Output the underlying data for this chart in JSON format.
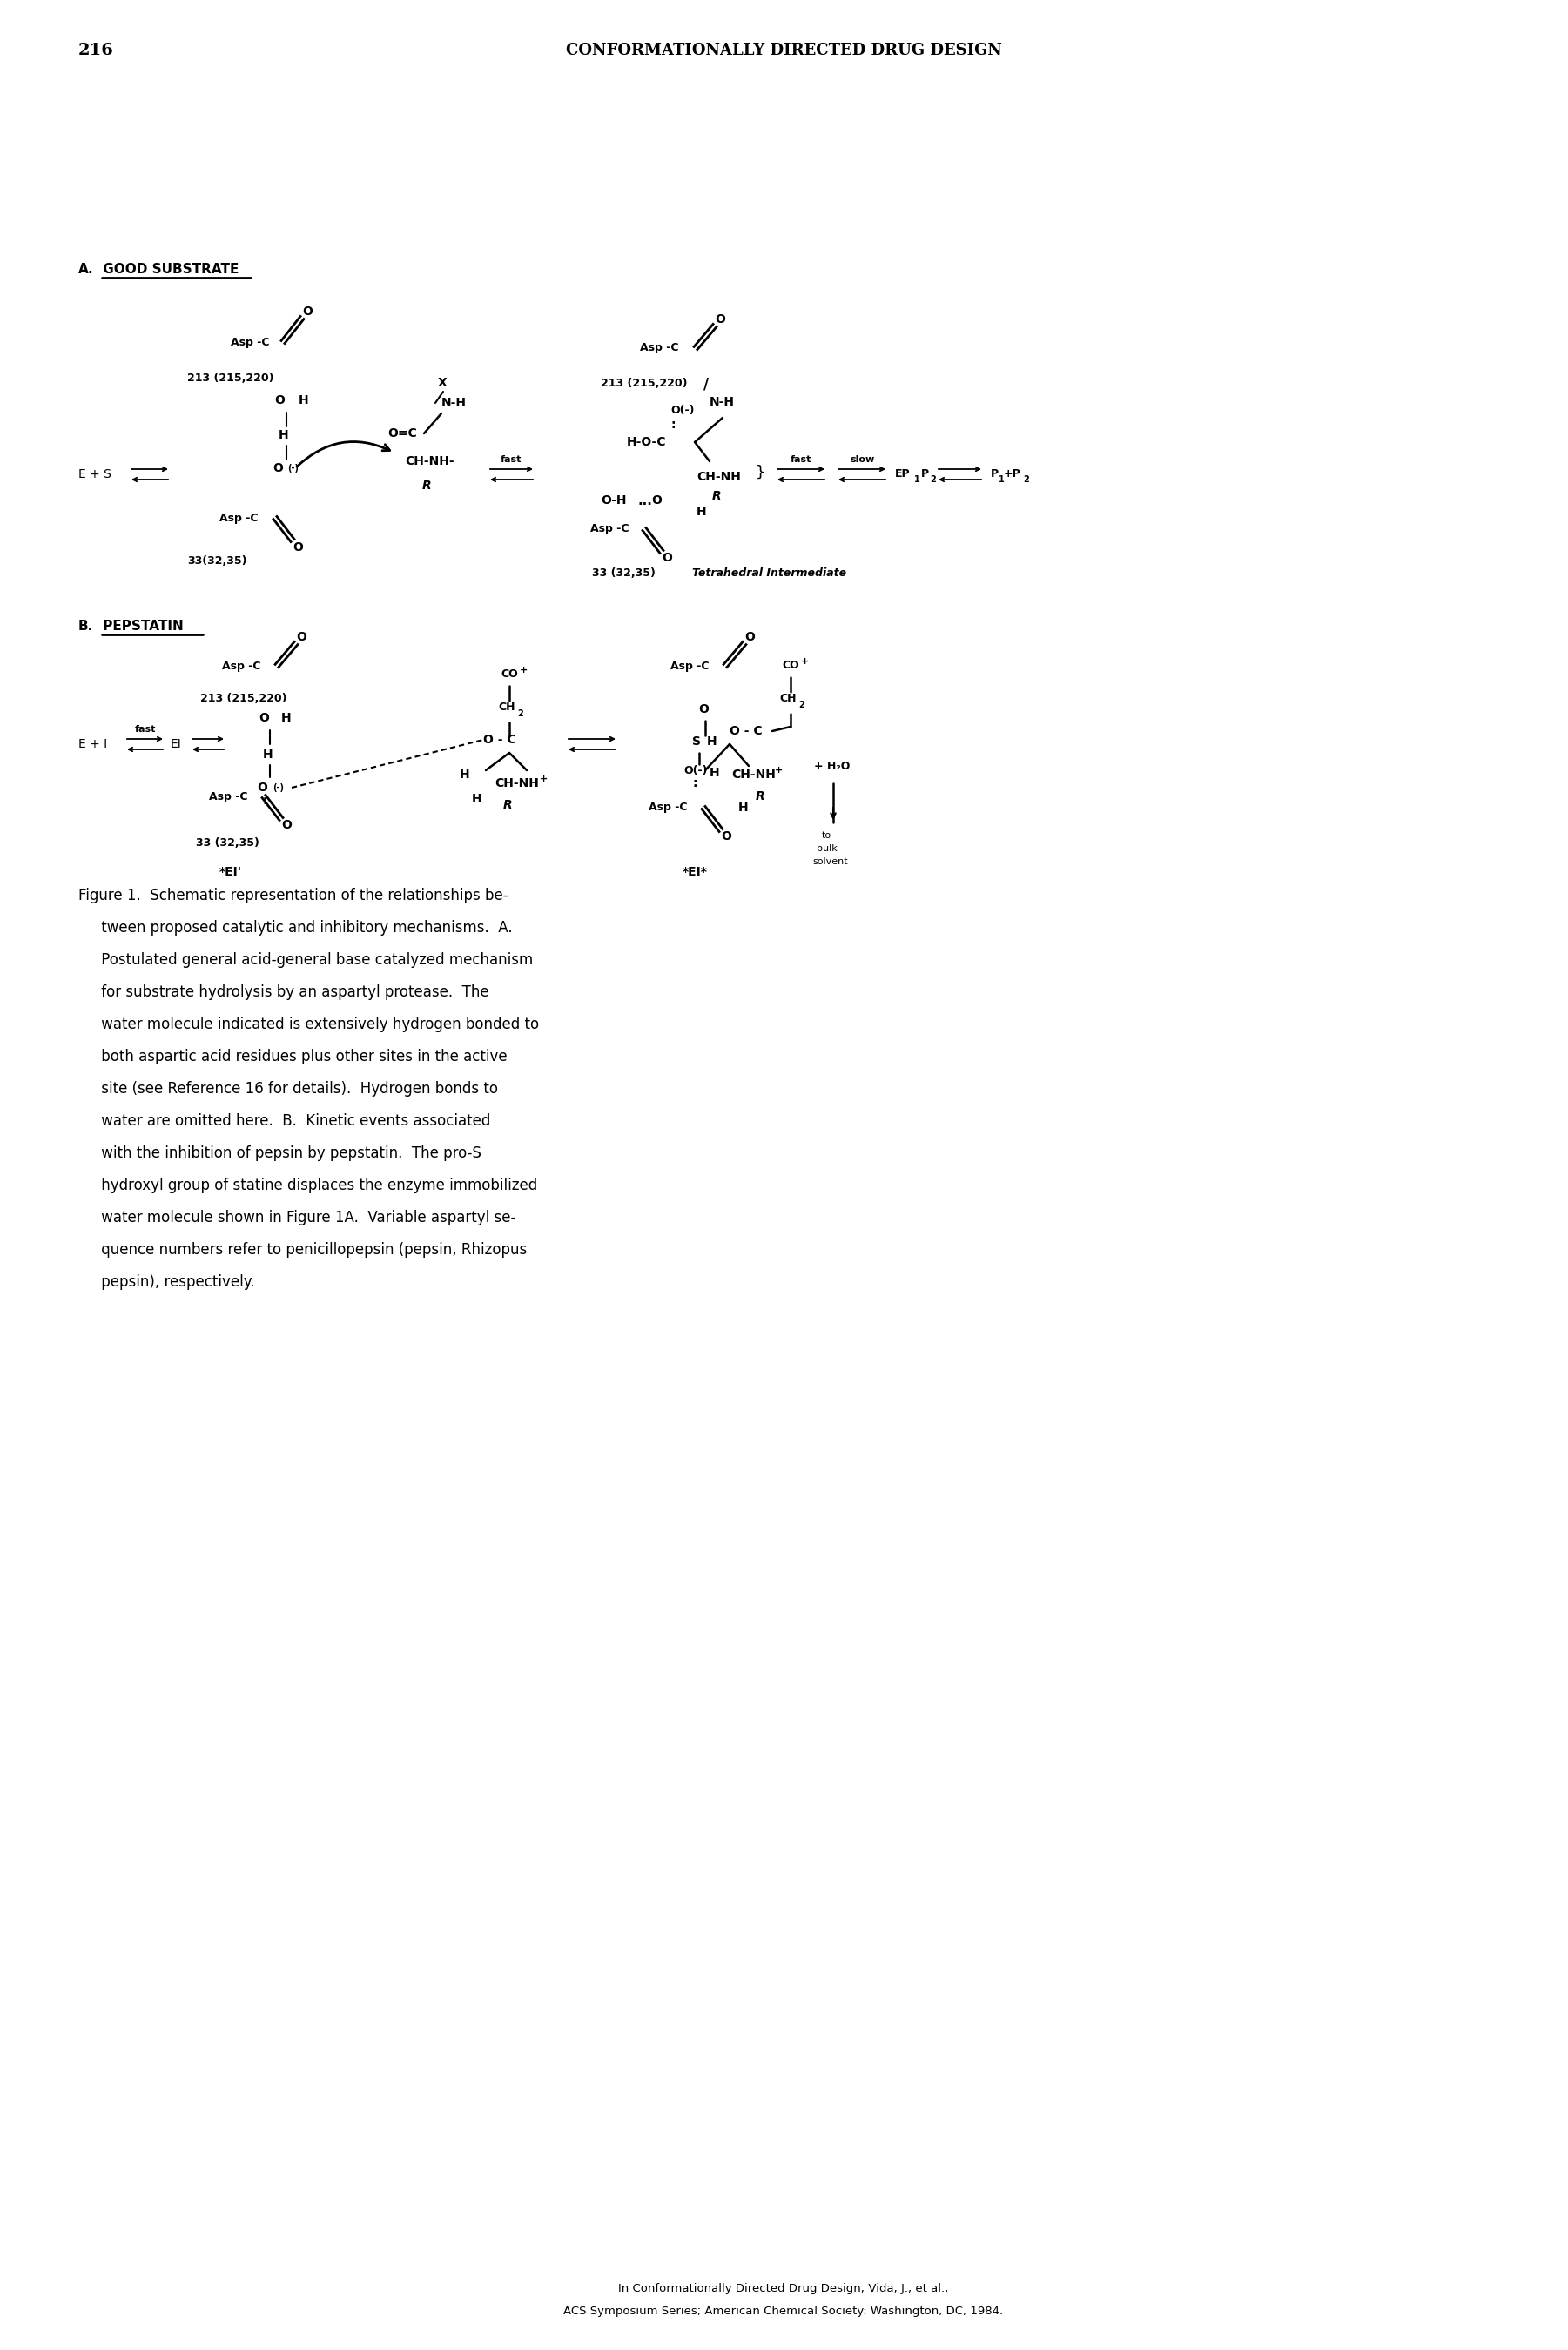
{
  "page_number": "216",
  "header": "CONFORMATIONALLY DIRECTED DRUG DESIGN",
  "section_a_label_prefix": "A.",
  "section_a_label_text": " GOOD SUBSTRATE",
  "section_b_label_prefix": "B.",
  "section_b_label_text": " PEPSTATIN",
  "figure_caption_lines": [
    "Figure 1.  Schematic representation of the relationships be-",
    "     tween proposed catalytic and inhibitory mechanisms.  A.",
    "     Postulated general acid-general base catalyzed mechanism",
    "     for substrate hydrolysis by an aspartyl protease.  The",
    "     water molecule indicated is extensively hydrogen bonded to",
    "     both aspartic acid residues plus other sites in the active",
    "     site (see Reference 16 for details).  Hydrogen bonds to",
    "     water are omitted here.  B.  Kinetic events associated",
    "     with the inhibition of pepsin by pepstatin.  The pro-S",
    "     hydroxyl group of statine displaces the enzyme immobilized",
    "     water molecule shown in Figure 1A.  Variable aspartyl se-",
    "     quence numbers refer to penicillopepsin (pepsin, Rhizopus",
    "     pepsin), respectively."
  ],
  "footer_line1": "In Conformationally Directed Drug Design; Vida, J., et al.;",
  "footer_line2": "ACS Symposium Series; American Chemical Society: Washington, DC, 1984.",
  "bg_color": "#ffffff",
  "text_color": "#000000"
}
